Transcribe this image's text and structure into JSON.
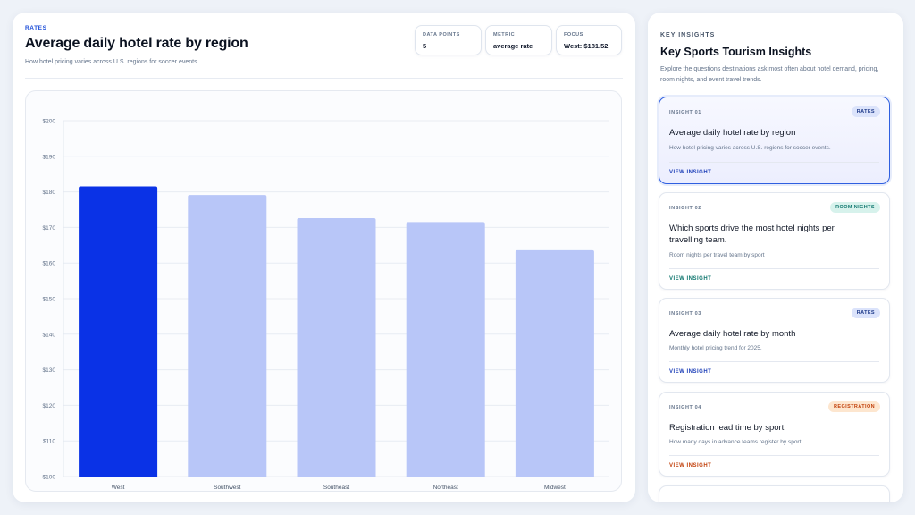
{
  "main": {
    "eyebrow": "RATES",
    "title": "Average daily hotel rate by region",
    "subtitle": "How hotel pricing varies across U.S. regions for soccer events.",
    "stats": [
      {
        "label": "DATA POINTS",
        "value": "5"
      },
      {
        "label": "METRIC",
        "value": "average rate"
      },
      {
        "label": "FOCUS",
        "value": "West: $181.52"
      }
    ]
  },
  "chart_data": {
    "type": "bar",
    "categories": [
      "West",
      "Southwest",
      "Southeast",
      "Northeast",
      "Midwest"
    ],
    "values": [
      181.52,
      179.1,
      172.6,
      171.5,
      163.6
    ],
    "ylim": [
      100,
      200
    ],
    "yticks": [
      "$100",
      "$110",
      "$120",
      "$130",
      "$140",
      "$150",
      "$160",
      "$170",
      "$180",
      "$190",
      "$200"
    ],
    "highlight_index": 0,
    "colors": {
      "highlight": "#0a32e6",
      "default": "#b8c6f8"
    },
    "grid": true
  },
  "side": {
    "eyebrow": "KEY INSIGHTS",
    "title": "Key Sports Tourism Insights",
    "description": "Explore the questions destinations ask most often about hotel demand, pricing, room nights, and event travel trends.",
    "insights": [
      {
        "num": "INSIGHT 01",
        "tag": "RATES",
        "title": "Average daily hotel rate by region",
        "desc": "How hotel pricing varies across U.S. regions for soccer events.",
        "link": "VIEW INSIGHT"
      },
      {
        "num": "INSIGHT 02",
        "tag": "ROOM NIGHTS",
        "title": "Which sports drive the most hotel nights per travelling team.",
        "desc": "Room nights per travel team by sport",
        "link": "VIEW INSIGHT"
      },
      {
        "num": "INSIGHT 03",
        "tag": "RATES",
        "title": "Average daily hotel rate by month",
        "desc": "Monthly hotel pricing trend for 2025.",
        "link": "VIEW INSIGHT"
      },
      {
        "num": "INSIGHT 04",
        "tag": "REGISTRATION",
        "title": "Registration lead time by sport",
        "desc": "How many days in advance teams register by sport",
        "link": "VIEW INSIGHT"
      }
    ]
  }
}
